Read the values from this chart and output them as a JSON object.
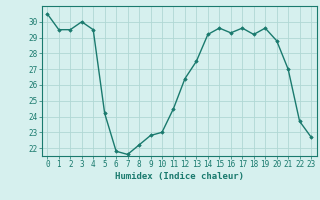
{
  "x": [
    0,
    1,
    2,
    3,
    4,
    5,
    6,
    7,
    8,
    9,
    10,
    11,
    12,
    13,
    14,
    15,
    16,
    17,
    18,
    19,
    20,
    21,
    22,
    23
  ],
  "y": [
    30.5,
    29.5,
    29.5,
    30.0,
    29.5,
    24.2,
    21.8,
    21.6,
    22.2,
    22.8,
    23.0,
    24.5,
    26.4,
    27.5,
    29.2,
    29.6,
    29.3,
    29.6,
    29.2,
    29.6,
    28.8,
    27.0,
    23.7,
    22.7
  ],
  "line_color": "#1a7a6e",
  "marker": "D",
  "marker_size": 1.8,
  "bg_color": "#d6f0ee",
  "grid_color": "#b0d8d4",
  "xlabel": "Humidex (Indice chaleur)",
  "ylim": [
    21.5,
    31.0
  ],
  "xlim": [
    -0.5,
    23.5
  ],
  "yticks": [
    22,
    23,
    24,
    25,
    26,
    27,
    28,
    29,
    30
  ],
  "xticks": [
    0,
    1,
    2,
    3,
    4,
    5,
    6,
    7,
    8,
    9,
    10,
    11,
    12,
    13,
    14,
    15,
    16,
    17,
    18,
    19,
    20,
    21,
    22,
    23
  ],
  "tick_color": "#1a7a6e",
  "label_fontsize": 6.5,
  "tick_fontsize": 5.5,
  "linewidth": 1.0
}
